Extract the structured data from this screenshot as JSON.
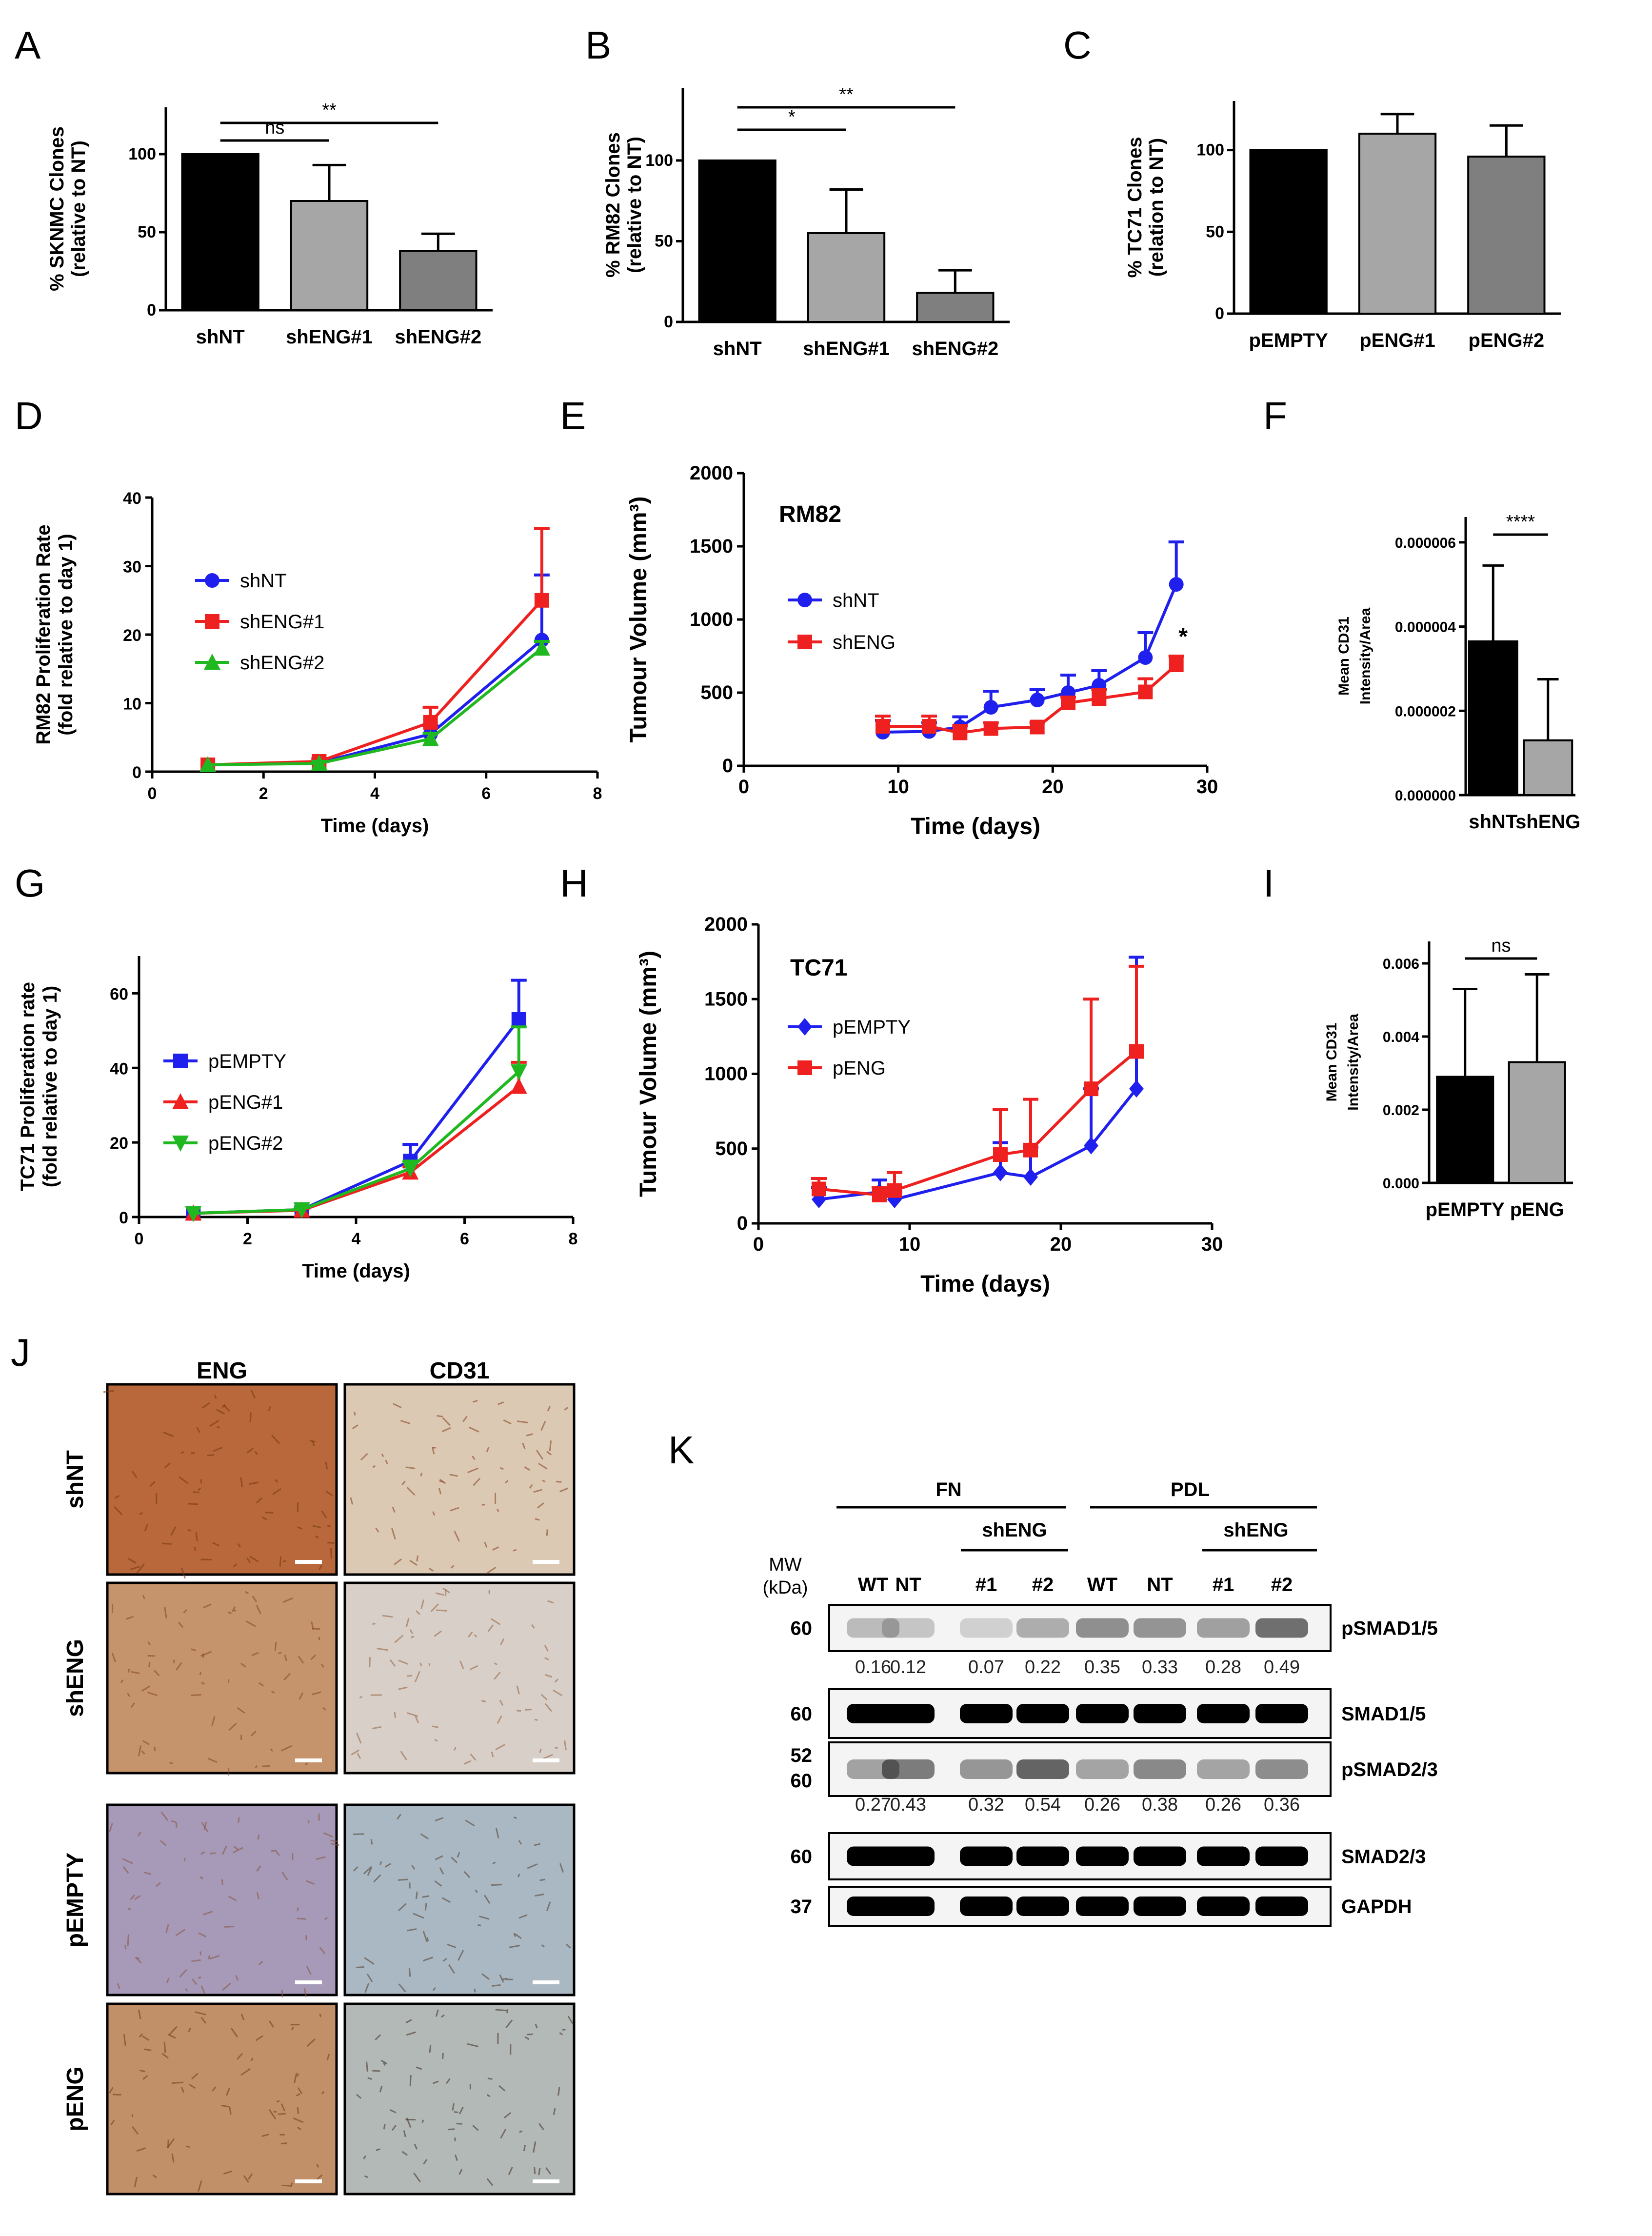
{
  "chart_data": [
    {
      "panel": "A",
      "type": "bar",
      "categories": [
        "shNT",
        "shENG#1",
        "shENG#2"
      ],
      "values": [
        100,
        70,
        38
      ],
      "errors": [
        0,
        23,
        11
      ],
      "colors": [
        "#000000",
        "#a6a6a6",
        "#7f7f7f"
      ],
      "ylabel_lines": [
        "% SKNMC Clones",
        "(relative to NT)"
      ],
      "ylim": [
        0,
        130
      ],
      "yticks": [
        0,
        50,
        100
      ],
      "sig": [
        {
          "from": 0,
          "to": 1,
          "label": "ns"
        },
        {
          "from": 0,
          "to": 2,
          "label": "**"
        }
      ]
    },
    {
      "panel": "B",
      "type": "bar",
      "categories": [
        "shNT",
        "shENG#1",
        "shENG#2"
      ],
      "values": [
        100,
        55,
        18
      ],
      "errors": [
        0,
        27,
        14
      ],
      "colors": [
        "#000000",
        "#a6a6a6",
        "#7f7f7f"
      ],
      "ylabel_lines": [
        "% RM82 Clones",
        "(relative to NT)"
      ],
      "ylim": [
        0,
        145
      ],
      "yticks": [
        0,
        50,
        100
      ],
      "sig": [
        {
          "from": 0,
          "to": 1,
          "label": "*"
        },
        {
          "from": 0,
          "to": 2,
          "label": "**"
        }
      ]
    },
    {
      "panel": "C",
      "type": "bar",
      "categories": [
        "pEMPTY",
        "pENG#1",
        "pENG#2"
      ],
      "values": [
        100,
        110,
        96
      ],
      "errors": [
        0,
        12,
        19
      ],
      "colors": [
        "#000000",
        "#a6a6a6",
        "#7f7f7f"
      ],
      "ylabel_lines": [
        "% TC71 Clones",
        "(relation to NT)"
      ],
      "ylim": [
        0,
        130
      ],
      "yticks": [
        0,
        50,
        100
      ],
      "sig": []
    },
    {
      "panel": "D",
      "type": "line",
      "ylabel_lines": [
        "RM82 Proliferation Rate",
        "(fold relative to  day 1)"
      ],
      "xlabel": "Time (days)",
      "xlim": [
        0,
        8
      ],
      "ylim": [
        0,
        40
      ],
      "xticks": [
        0,
        2,
        4,
        6,
        8
      ],
      "yticks": [
        0,
        10,
        20,
        30,
        40
      ],
      "series": [
        {
          "name": "shNT",
          "color": "#2020ee",
          "marker": "circle",
          "x": [
            1,
            3,
            5,
            7
          ],
          "y": [
            1,
            1.3,
            5.5,
            19.2
          ],
          "err": [
            0,
            0.4,
            1.2,
            9.5
          ]
        },
        {
          "name": "shENG#1",
          "color": "#ee2020",
          "marker": "square",
          "x": [
            1,
            3,
            5,
            7
          ],
          "y": [
            1,
            1.5,
            7.2,
            25
          ],
          "err": [
            0,
            0.4,
            2.2,
            10.5
          ]
        },
        {
          "name": "shENG#2",
          "color": "#20b820",
          "marker": "triangle",
          "x": [
            1,
            3,
            5,
            7
          ],
          "y": [
            1,
            1.2,
            4.8,
            18
          ],
          "err": [
            0,
            0.3,
            0.8,
            1
          ]
        }
      ]
    },
    {
      "panel": "E",
      "type": "line",
      "annotation": "RM82",
      "annotation_star": "*",
      "ylabel": "Tumour Volume (mm³)",
      "xlabel": "Time  (days)",
      "xlim": [
        0,
        30
      ],
      "ylim": [
        0,
        2000
      ],
      "xticks": [
        0,
        10,
        20,
        30
      ],
      "yticks": [
        0,
        500,
        1000,
        1500,
        2000
      ],
      "series": [
        {
          "name": "shNT",
          "color": "#2020ee",
          "marker": "circle",
          "x": [
            9,
            12,
            14,
            16,
            19,
            21,
            23,
            26,
            28
          ],
          "y": [
            230,
            235,
            265,
            400,
            450,
            500,
            550,
            740,
            1240
          ],
          "err": [
            80,
            60,
            70,
            110,
            70,
            120,
            100,
            170,
            290
          ]
        },
        {
          "name": "shENG",
          "color": "#ee2020",
          "marker": "square",
          "x": [
            9,
            12,
            14,
            16,
            19,
            21,
            23,
            26,
            28
          ],
          "y": [
            270,
            270,
            225,
            255,
            265,
            430,
            460,
            505,
            690
          ],
          "err": [
            70,
            70,
            50,
            40,
            30,
            40,
            60,
            90,
            60
          ]
        }
      ]
    },
    {
      "panel": "F",
      "type": "bar",
      "categories": [
        "shNT",
        "shENG"
      ],
      "values": [
        3.65e-06,
        1.3e-06
      ],
      "errors": [
        1.8e-06,
        1.45e-06
      ],
      "colors": [
        "#000000",
        "#a6a6a6"
      ],
      "ylabel_lines": [
        "Mean CD31",
        "Intensity/Area"
      ],
      "ylim": [
        0,
        6.6e-06
      ],
      "yticks": [
        0,
        2e-06,
        4e-06,
        6e-06
      ],
      "ytick_labels": [
        "0.000000",
        "0.000002",
        "0.000004",
        "0.000006"
      ],
      "sig": [
        {
          "from": 0,
          "to": 1,
          "label": "****"
        }
      ]
    },
    {
      "panel": "G",
      "type": "line",
      "ylabel_lines": [
        "TC71 Proliferation rate",
        "(fold relative to day 1)"
      ],
      "xlabel": "Time (days)",
      "xlim": [
        0,
        8
      ],
      "ylim": [
        0,
        70
      ],
      "xticks": [
        0,
        2,
        4,
        6,
        8
      ],
      "yticks": [
        0,
        20,
        40,
        60
      ],
      "series": [
        {
          "name": "pEMPTY",
          "color": "#2020ee",
          "marker": "square",
          "x": [
            1,
            3,
            5,
            7
          ],
          "y": [
            1,
            2,
            15,
            53
          ],
          "err": [
            0,
            0.5,
            4.5,
            10.5
          ]
        },
        {
          "name": "pENG#1",
          "color": "#ee2020",
          "marker": "triangle",
          "x": [
            1,
            3,
            5,
            7
          ],
          "y": [
            1,
            1.8,
            12,
            35
          ],
          "err": [
            0,
            0.5,
            1.5,
            6.5
          ]
        },
        {
          "name": "pENG#2",
          "color": "#20b820",
          "marker": "tri-down",
          "x": [
            1,
            3,
            5,
            7
          ],
          "y": [
            1,
            2,
            13,
            39
          ],
          "err": [
            0,
            0.5,
            2,
            12
          ]
        }
      ]
    },
    {
      "panel": "H",
      "type": "line",
      "annotation": "TC71",
      "ylabel": "Tumour Volume (mm³)",
      "xlabel": "Time  (days)",
      "xlim": [
        0,
        30
      ],
      "ylim": [
        0,
        2000
      ],
      "xticks": [
        0,
        10,
        20,
        30
      ],
      "yticks": [
        0,
        500,
        1000,
        1500,
        2000
      ],
      "series": [
        {
          "name": "pEMPTY",
          "color": "#2020ee",
          "marker": "diamond",
          "x": [
            4,
            8,
            9,
            16,
            18,
            22,
            25
          ],
          "y": [
            160,
            210,
            160,
            340,
            310,
            520,
            900
          ],
          "err": [
            80,
            80,
            50,
            200,
            200,
            380,
            880
          ]
        },
        {
          "name": "pENG",
          "color": "#ee2020",
          "marker": "square",
          "x": [
            4,
            8,
            9,
            16,
            18,
            22,
            25
          ],
          "y": [
            230,
            190,
            220,
            460,
            490,
            900,
            1150
          ],
          "err": [
            70,
            50,
            120,
            300,
            340,
            600,
            570
          ]
        }
      ]
    },
    {
      "panel": "I",
      "type": "bar",
      "categories": [
        "pEMPTY",
        "pENG"
      ],
      "values": [
        0.0029,
        0.0033
      ],
      "errors": [
        0.0024,
        0.0024
      ],
      "colors": [
        "#000000",
        "#a6a6a6"
      ],
      "ylabel_lines": [
        "Mean CD31",
        "Intensity/Area"
      ],
      "ylim": [
        0,
        0.0066
      ],
      "yticks": [
        0,
        0.002,
        0.004,
        0.006
      ],
      "ytick_labels": [
        "0.000",
        "0.002",
        "0.004",
        "0.006"
      ],
      "sig": [
        {
          "from": 0,
          "to": 1,
          "label": "ns"
        }
      ]
    },
    {
      "panel": "J",
      "type": "image-grid",
      "columns": [
        "ENG",
        "CD31"
      ],
      "rows": [
        "shNT",
        "shENG",
        "pEMPTY",
        "pENG"
      ]
    },
    {
      "panel": "K",
      "type": "western-blot",
      "mw_label_lines": [
        "MW",
        "(kDa)"
      ],
      "group_labels": [
        "FN",
        "PDL"
      ],
      "sub_labels": [
        "shENG",
        "shENG"
      ],
      "lanes": [
        "WT",
        "NT",
        "#1",
        "#2",
        "WT",
        "NT",
        "#1",
        "#2"
      ],
      "blots": [
        {
          "name": "pSMAD1/5",
          "mw": [
            "60"
          ],
          "intensity": [
            0.16,
            0.12,
            0.07,
            0.22,
            0.35,
            0.33,
            0.28,
            0.49
          ]
        },
        {
          "name": "SMAD1/5",
          "mw": [
            "60"
          ],
          "intensity": [
            1,
            1,
            1,
            1,
            1,
            1,
            1,
            1
          ]
        },
        {
          "name": "pSMAD2/3",
          "mw": [
            "52",
            "60"
          ],
          "intensity": [
            0.27,
            0.43,
            0.32,
            0.54,
            0.26,
            0.38,
            0.26,
            0.36
          ]
        },
        {
          "name": "SMAD2/3",
          "mw": [
            "60"
          ],
          "intensity": [
            1,
            1,
            1,
            1,
            1,
            1,
            1,
            1
          ]
        },
        {
          "name": "GAPDH",
          "mw": [
            "37"
          ],
          "intensity": [
            1,
            1,
            1,
            1,
            1,
            1,
            1,
            1
          ]
        }
      ],
      "quant_rows": [
        {
          "after": "pSMAD1/5",
          "values": [
            "0.16",
            "0.12",
            "0.07",
            "0.22",
            "0.35",
            "0.33",
            "0.28",
            "0.49"
          ]
        },
        {
          "after": "pSMAD2/3",
          "values": [
            "0.27",
            "0.43",
            "0.32",
            "0.54",
            "0.26",
            "0.38",
            "0.26",
            "0.36"
          ]
        }
      ]
    }
  ]
}
